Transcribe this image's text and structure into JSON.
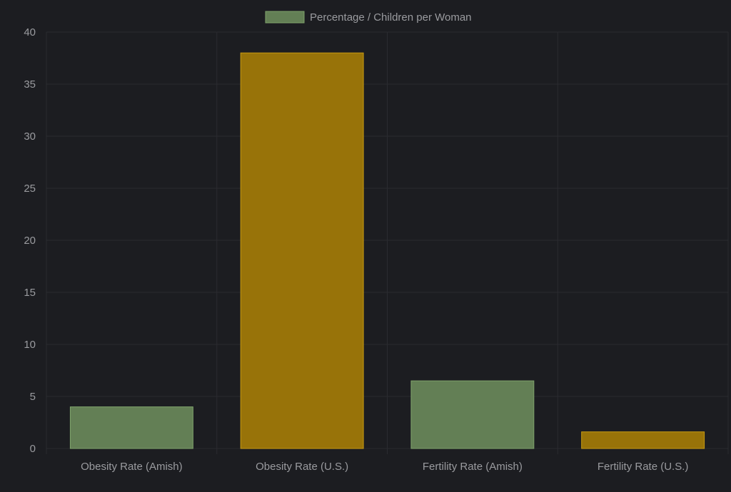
{
  "chart_data": {
    "type": "bar",
    "categories": [
      "Obesity Rate (Amish)",
      "Obesity Rate (U.S.)",
      "Fertility Rate (Amish)",
      "Fertility Rate (U.S.)"
    ],
    "series": [
      {
        "name": "Percentage / Children per Woman",
        "values": [
          4,
          38,
          6.5,
          1.6
        ],
        "colors": [
          "#637f55",
          "#987309",
          "#637f55",
          "#987309"
        ],
        "border_colors": [
          "#7fa36b",
          "#c79a12",
          "#7fa36b",
          "#c79a12"
        ]
      }
    ],
    "ylim": [
      0,
      40
    ],
    "yticks": [
      0,
      5,
      10,
      15,
      20,
      25,
      30,
      35,
      40
    ],
    "title": "",
    "xlabel": "",
    "ylabel": "",
    "grid": true,
    "legend_position": "top-center",
    "legend_swatch_color": "#637f55",
    "legend_swatch_border": "#7fa36b",
    "background": "#1c1d21"
  }
}
